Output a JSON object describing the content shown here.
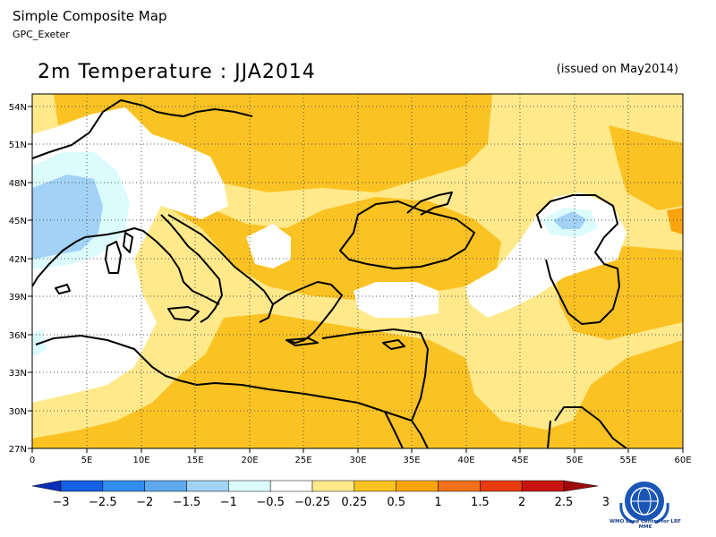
{
  "header": {
    "title": "Simple Composite Map",
    "subtitle": "GPC_Exeter"
  },
  "map": {
    "title": "2m Temperature : JJA2014",
    "issued": "(issued on May2014)",
    "lat_labels": [
      "54N",
      "51N",
      "48N",
      "45N",
      "42N",
      "39N",
      "36N",
      "33N",
      "30N",
      "27N"
    ],
    "lon_labels": [
      "0",
      "5E",
      "10E",
      "15E",
      "20E",
      "25E",
      "30E",
      "35E",
      "40E",
      "45E",
      "50E",
      "55E",
      "60E"
    ]
  },
  "legend": {
    "labels": [
      "−3",
      "−2.5",
      "−2",
      "−1.5",
      "−1",
      "−0.5",
      "−0.25",
      "0.25",
      "0.5",
      "1",
      "1.5",
      "2",
      "2.5",
      "3"
    ],
    "colors": [
      "#0b2fb8",
      "#1560e6",
      "#2f8ef0",
      "#5ea9ec",
      "#a2d2f6",
      "#dcfbfd",
      "#ffffff",
      "#ffe98a",
      "#fbc223",
      "#f9a40e",
      "#f4701a",
      "#e83a10",
      "#c8150f",
      "#9e0a0a"
    ]
  },
  "logo": {
    "name": "wmo-emblem-icon",
    "caption": "WMO Lead Centre for LRF MME"
  }
}
